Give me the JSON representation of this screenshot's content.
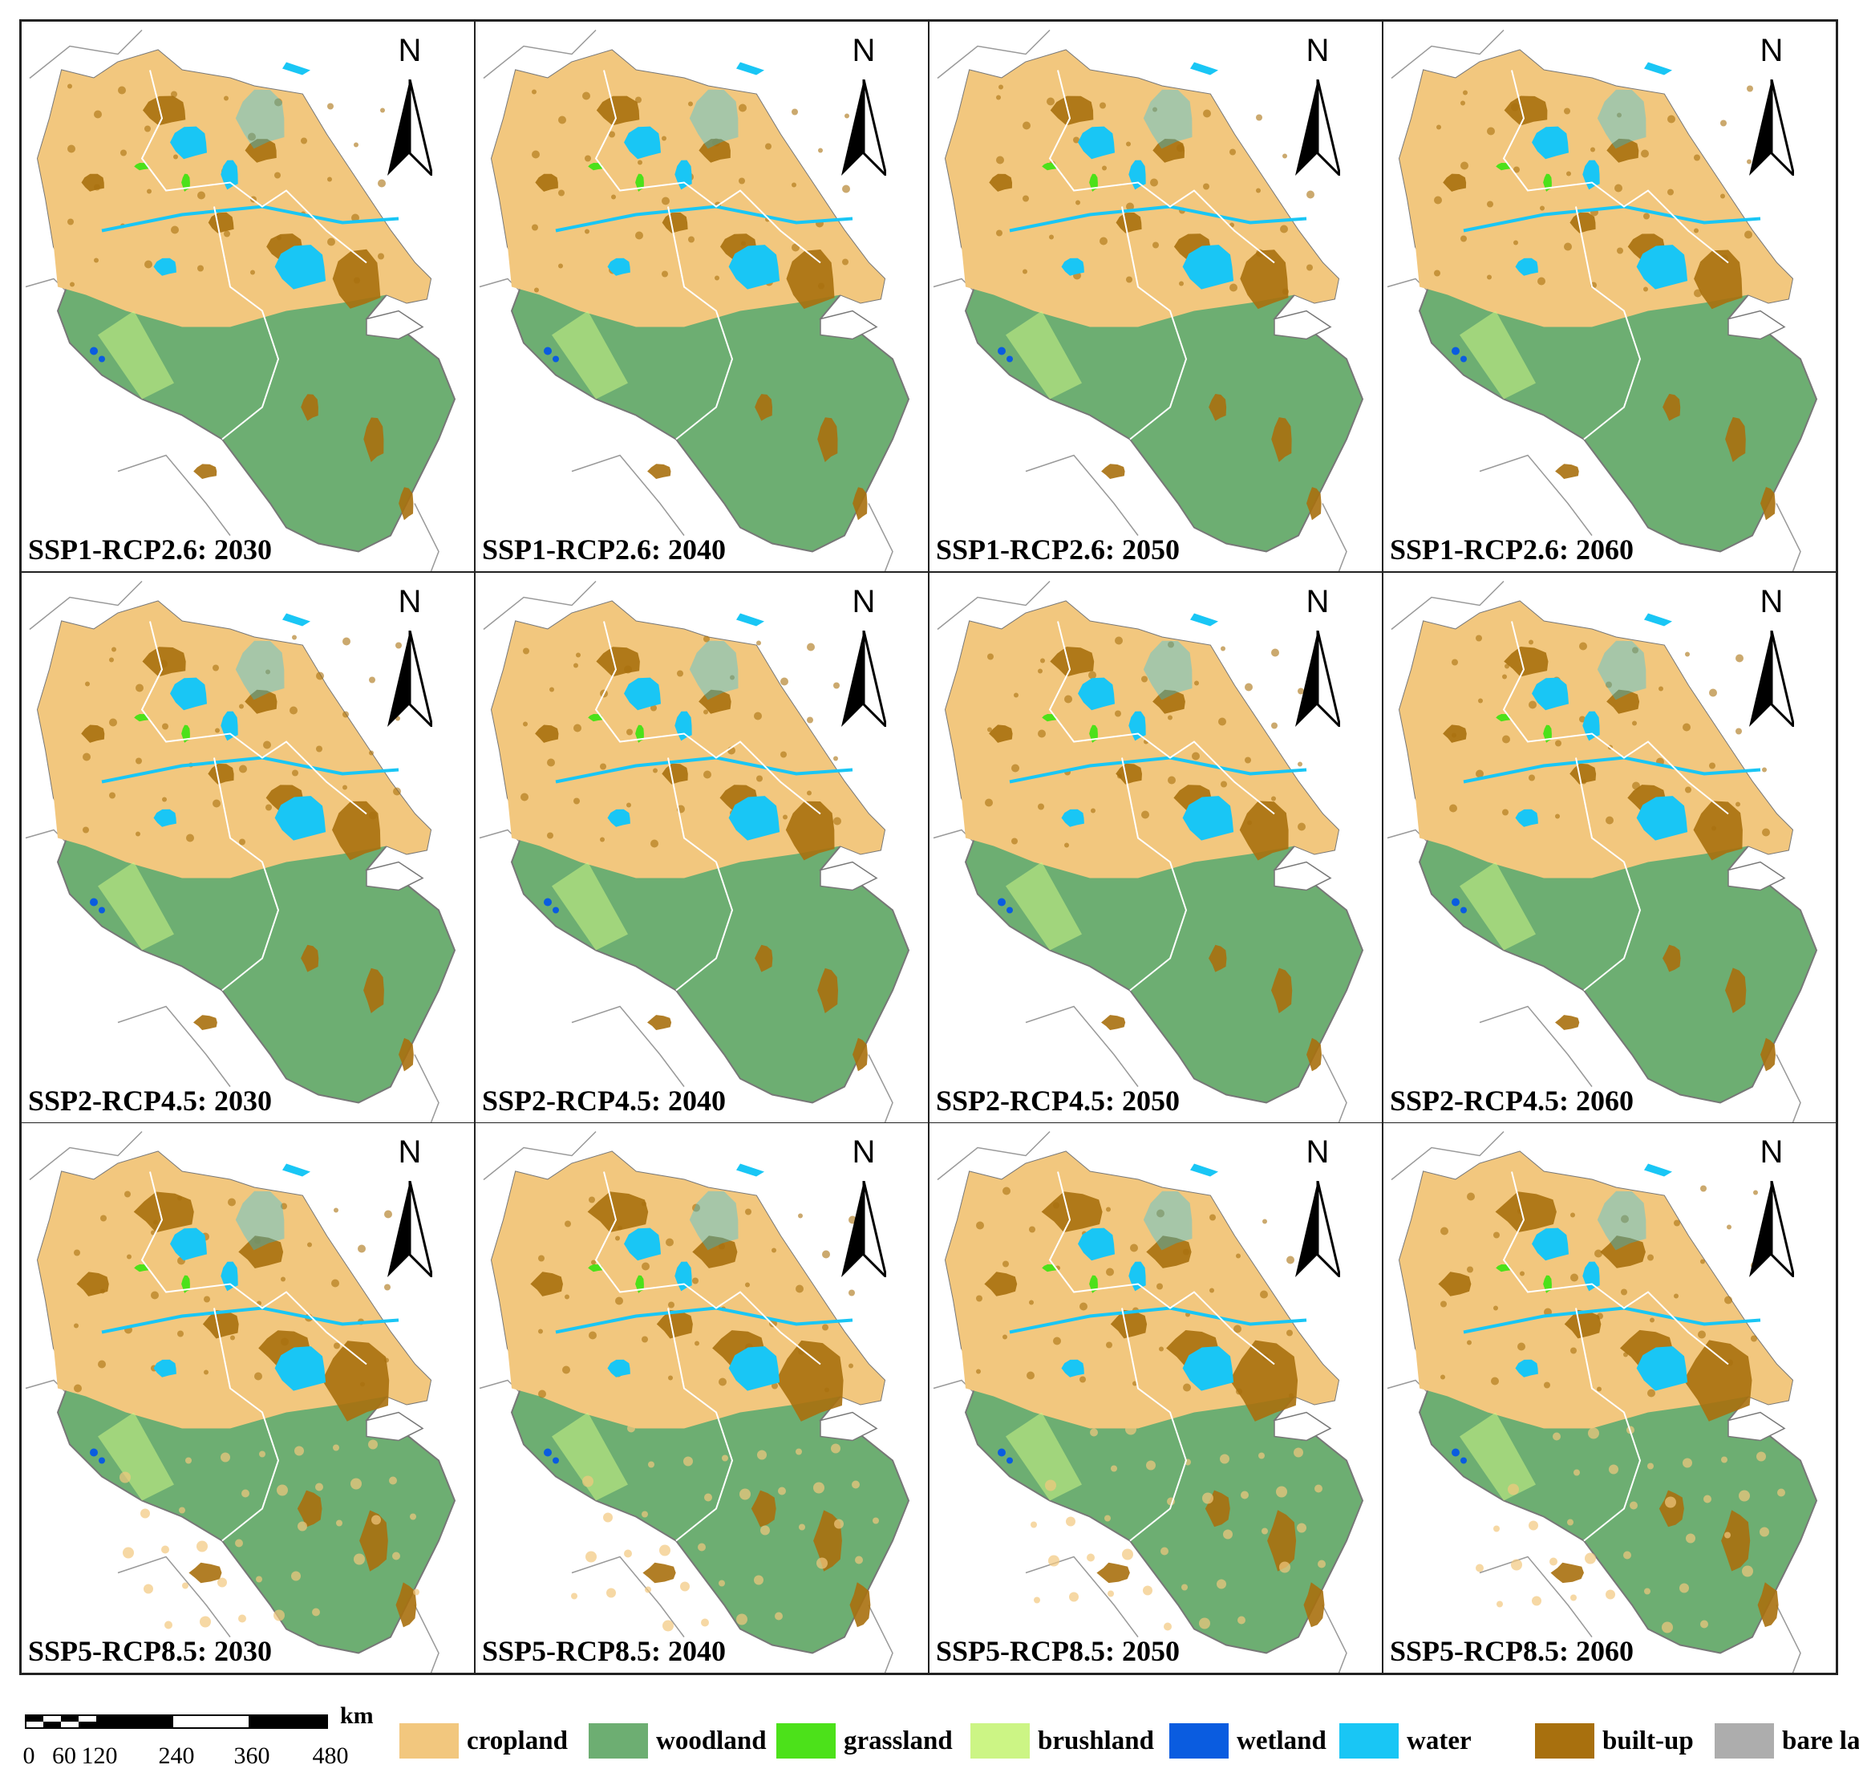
{
  "north_letter": "N",
  "panels": [
    {
      "label": "SSP1-RCP2.6: 2030"
    },
    {
      "label": "SSP1-RCP2.6: 2040"
    },
    {
      "label": "SSP1-RCP2.6: 2050"
    },
    {
      "label": "SSP1-RCP2.6: 2060"
    },
    {
      "label": "SSP2-RCP4.5: 2030"
    },
    {
      "label": "SSP2-RCP4.5: 2040"
    },
    {
      "label": "SSP2-RCP4.5: 2050"
    },
    {
      "label": "SSP2-RCP4.5: 2060"
    },
    {
      "label": "SSP5-RCP8.5: 2030"
    },
    {
      "label": "SSP5-RCP8.5: 2040"
    },
    {
      "label": "SSP5-RCP8.5: 2050"
    },
    {
      "label": "SSP5-RCP8.5: 2060"
    }
  ],
  "scale_bar": {
    "ticks": [
      "0",
      "60",
      "120",
      "240",
      "360",
      "480"
    ],
    "unit": "km"
  },
  "legend": [
    {
      "label": "cropland",
      "color": "#F2C77E"
    },
    {
      "label": "woodland",
      "color": "#6DAE72"
    },
    {
      "label": "grassland",
      "color": "#4CE11A"
    },
    {
      "label": "brushland",
      "color": "#CCF585"
    },
    {
      "label": "wetland",
      "color": "#0A5CE0"
    },
    {
      "label": "water",
      "color": "#19C6F5"
    },
    {
      "label": "built-up",
      "color": "#A8700E"
    },
    {
      "label": "bare land",
      "color": "#ADADAD"
    }
  ]
}
